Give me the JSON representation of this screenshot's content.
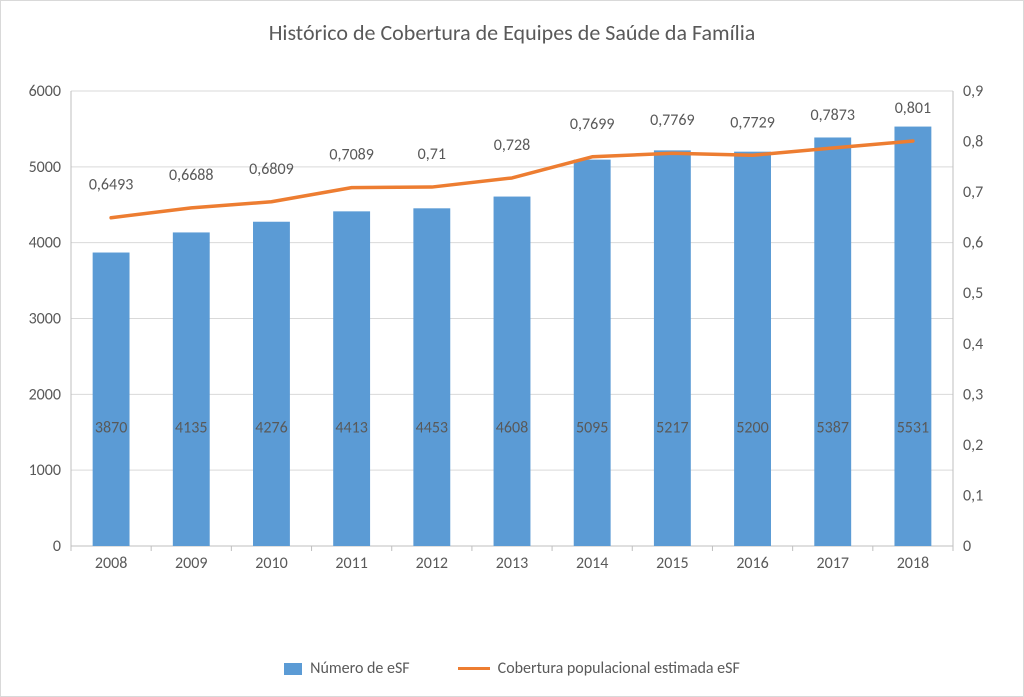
{
  "chart": {
    "type": "bar+line",
    "title": "Histórico de Cobertura de Equipes de Saúde da Família",
    "title_fontsize": 22,
    "title_color": "#595959",
    "background_color": "#ffffff",
    "plot_background_color": "#ffffff",
    "border_color": "#d9d9d9",
    "grid_color": "#d9d9d9",
    "axis_line_color": "#bfbfbf",
    "axis_label_color": "#595959",
    "data_label_color": "#595959",
    "tick_label_fontsize": 16,
    "data_label_fontsize": 16,
    "bar_width": 0.46,
    "categories": [
      "2008",
      "2009",
      "2010",
      "2011",
      "2012",
      "2013",
      "2014",
      "2015",
      "2016",
      "2017",
      "2018"
    ],
    "bars": {
      "name": "Número de eSF",
      "values": [
        3870,
        4135,
        4276,
        4413,
        4453,
        4608,
        5095,
        5217,
        5200,
        5387,
        5531
      ],
      "color": "#5b9bd5",
      "axis": "left",
      "data_labels": [
        "3870",
        "4135",
        "4276",
        "4413",
        "4453",
        "4608",
        "5095",
        "5217",
        "5200",
        "5387",
        "5531"
      ]
    },
    "line": {
      "name": "Cobertura populacional estimada eSF",
      "values": [
        0.6493,
        0.6688,
        0.6809,
        0.7089,
        0.71,
        0.728,
        0.7699,
        0.7769,
        0.7729,
        0.7873,
        0.801
      ],
      "color": "#ed7d31",
      "line_width": 3.5,
      "axis": "right",
      "data_labels": [
        "0,6493",
        "0,6688",
        "0,6809",
        "0,7089",
        "0,71",
        "0,728",
        "0,7699",
        "0,7769",
        "0,7729",
        "0,7873",
        "0,801"
      ]
    },
    "y_left": {
      "min": 0,
      "max": 6000,
      "step": 1000,
      "tick_labels": [
        "0",
        "1000",
        "2000",
        "3000",
        "4000",
        "5000",
        "6000"
      ]
    },
    "y_right": {
      "min": 0,
      "max": 0.9,
      "step": 0.1,
      "tick_labels": [
        "0",
        "0,1",
        "0,2",
        "0,3",
        "0,4",
        "0,5",
        "0,6",
        "0,7",
        "0,8",
        "0,9"
      ]
    },
    "legend": {
      "items": [
        {
          "type": "bar",
          "label": "Número de eSF",
          "color": "#5b9bd5"
        },
        {
          "type": "line",
          "label": "Cobertura populacional estimada eSF",
          "color": "#ed7d31"
        }
      ]
    }
  }
}
